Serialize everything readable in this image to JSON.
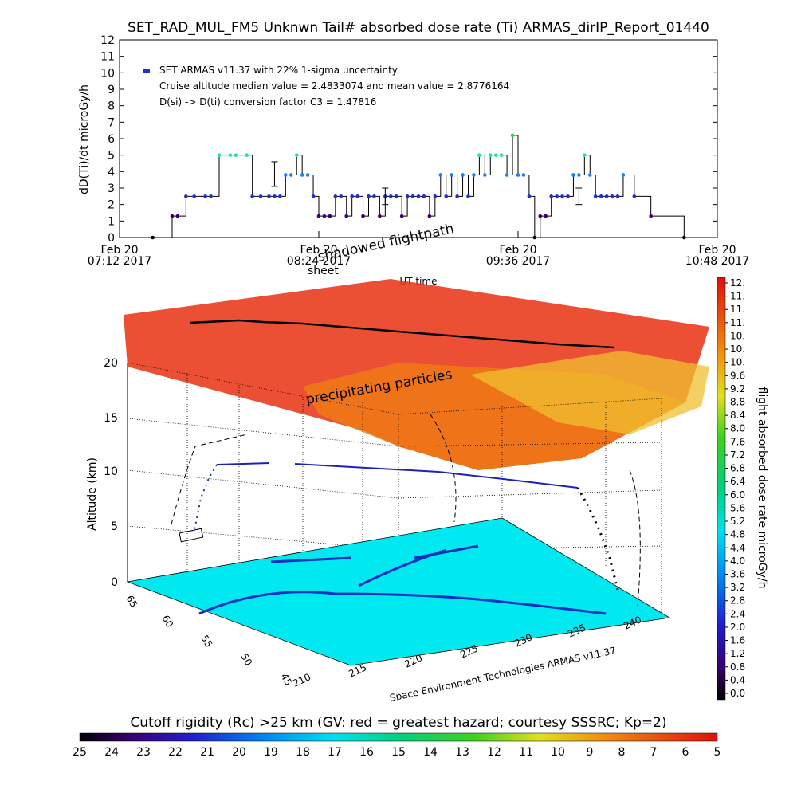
{
  "title": "SET_RAD_MUL_FM5 Unknwn Tail#  absorbed dose rate (Ti) ARMAS_dirIP_Report_01440",
  "ts": {
    "ylabel": "dD(Ti)/dt microGy/h",
    "xlabel": "UT time",
    "legend": "SET ARMAS v11.37 with 22% 1-sigma uncertainty",
    "note1": "Cruise altitude median value = 2.4833074 and mean value = 2.8776164",
    "note2": "D(si) -> D(ti) conversion factor C3 = 1.47816",
    "yticks": [
      "0",
      "1",
      "2",
      "3",
      "4",
      "5",
      "6",
      "7",
      "8",
      "9",
      "10",
      "11",
      "12"
    ],
    "xticks": [
      {
        "day": "Feb 20",
        "time": "07:12 2017"
      },
      {
        "day": "Feb 20",
        "time": "08:24 2017"
      },
      {
        "day": "Feb 20",
        "time": "09:36 2017"
      },
      {
        "day": "Feb 20",
        "time": "10:48 2017"
      }
    ]
  },
  "plot3d": {
    "label_shadowed": "shadowed flightpath",
    "label_sheet": "sheet",
    "label_precip": "precipitating particles",
    "zlabel": "Altitude (km)",
    "zticks": [
      "0",
      "5",
      "10",
      "15",
      "20"
    ],
    "lat_ticks": [
      "65",
      "60",
      "55",
      "50",
      "45"
    ],
    "lon_ticks": [
      "210",
      "215",
      "220",
      "225",
      "230",
      "235",
      "240"
    ],
    "credit": "Space Environment Technologies ARMAS v11.37"
  },
  "colorbar_right": {
    "label": "flight absorbed dose rate microGy/h",
    "ticks": [
      "12.",
      "11.",
      "11.",
      "11.",
      "10.",
      "10.",
      "10.",
      "9.6",
      "9.2",
      "8.8",
      "8.4",
      "8.0",
      "7.6",
      "7.2",
      "6.8",
      "6.4",
      "6.0",
      "5.6",
      "5.2",
      "4.8",
      "4.4",
      "4.0",
      "3.6",
      "3.2",
      "2.8",
      "2.4",
      "2.0",
      "1.6",
      "1.2",
      "0.8",
      "0.4",
      "0.0"
    ]
  },
  "colorbar_bottom": {
    "label": "Cutoff rigidity (Rc) >25 km (GV: red = greatest hazard; courtesy SSSRC; Kp=2)",
    "ticks": [
      "25",
      "24",
      "23",
      "22",
      "21",
      "20",
      "19",
      "18",
      "17",
      "16",
      "15",
      "14",
      "13",
      "12",
      "11",
      "10",
      "9",
      "8",
      "7",
      "6",
      "5"
    ]
  },
  "chart_data": {
    "type": "scatter",
    "title": "SET_RAD_MUL_FM5 Unknwn Tail#  absorbed dose rate (Ti) ARMAS_dirIP_Report_01440",
    "xlabel": "UT time",
    "ylabel": "dD(Ti)/dt microGy/h",
    "xlim": [
      "07:12",
      "10:48"
    ],
    "ylim": [
      0,
      12
    ],
    "series": [
      {
        "name": "SET ARMAS v11.37 with 22% 1-sigma uncertainty",
        "x": [
          "07:24",
          "07:31",
          "07:33",
          "07:36",
          "07:39",
          "07:43",
          "07:45",
          "07:48",
          "07:52",
          "07:54",
          "07:58",
          "08:00",
          "08:03",
          "08:06",
          "08:08",
          "08:10",
          "08:12",
          "08:14",
          "08:16",
          "08:18",
          "08:20",
          "08:22",
          "08:24",
          "08:26",
          "08:28",
          "08:30",
          "08:32",
          "08:34",
          "08:36",
          "08:38",
          "08:40",
          "08:42",
          "08:44",
          "08:46",
          "08:48",
          "08:50",
          "08:52",
          "08:54",
          "08:56",
          "08:58",
          "09:00",
          "09:02",
          "09:04",
          "09:06",
          "09:08",
          "09:10",
          "09:12",
          "09:14",
          "09:16",
          "09:18",
          "09:20",
          "09:22",
          "09:24",
          "09:26",
          "09:28",
          "09:30",
          "09:32",
          "09:34",
          "09:36",
          "09:38",
          "09:40",
          "09:42",
          "09:44",
          "09:46",
          "09:48",
          "09:50",
          "09:52",
          "09:54",
          "09:56",
          "09:58",
          "10:00",
          "10:02",
          "10:04",
          "10:06",
          "10:08",
          "10:10",
          "10:12",
          "10:14",
          "10:18",
          "10:24",
          "10:36"
        ],
        "values": [
          0,
          1.3,
          1.3,
          2.5,
          2.5,
          2.5,
          2.5,
          5,
          5,
          5,
          5,
          2.5,
          2.5,
          2.5,
          2.5,
          2.5,
          3.8,
          3.8,
          5,
          3.8,
          3.8,
          2.5,
          1.3,
          1.3,
          1.3,
          2.5,
          2.5,
          1.3,
          2.5,
          2.5,
          1.3,
          2.5,
          2.5,
          1.3,
          2.5,
          2.5,
          2.5,
          1.3,
          2.5,
          2.5,
          2.5,
          2.5,
          1.3,
          2.5,
          3.8,
          2.5,
          3.8,
          2.5,
          3.8,
          2.5,
          3.8,
          5,
          3.8,
          5,
          5,
          5,
          3.8,
          6.2,
          3.8,
          3.8,
          2.5,
          0,
          1.3,
          1.3,
          2.5,
          2.5,
          2.5,
          2.5,
          3.8,
          3.8,
          5,
          3.8,
          2.5,
          2.5,
          2.5,
          2.5,
          2.5,
          3.8,
          2.5,
          1.3,
          0
        ]
      }
    ],
    "error_bars": [
      {
        "x": "08:08",
        "low": 3.1,
        "high": 4.6
      },
      {
        "x": "08:48",
        "low": 2.0,
        "high": 3.0
      },
      {
        "x": "09:58",
        "low": 2.0,
        "high": 3.0
      }
    ]
  }
}
